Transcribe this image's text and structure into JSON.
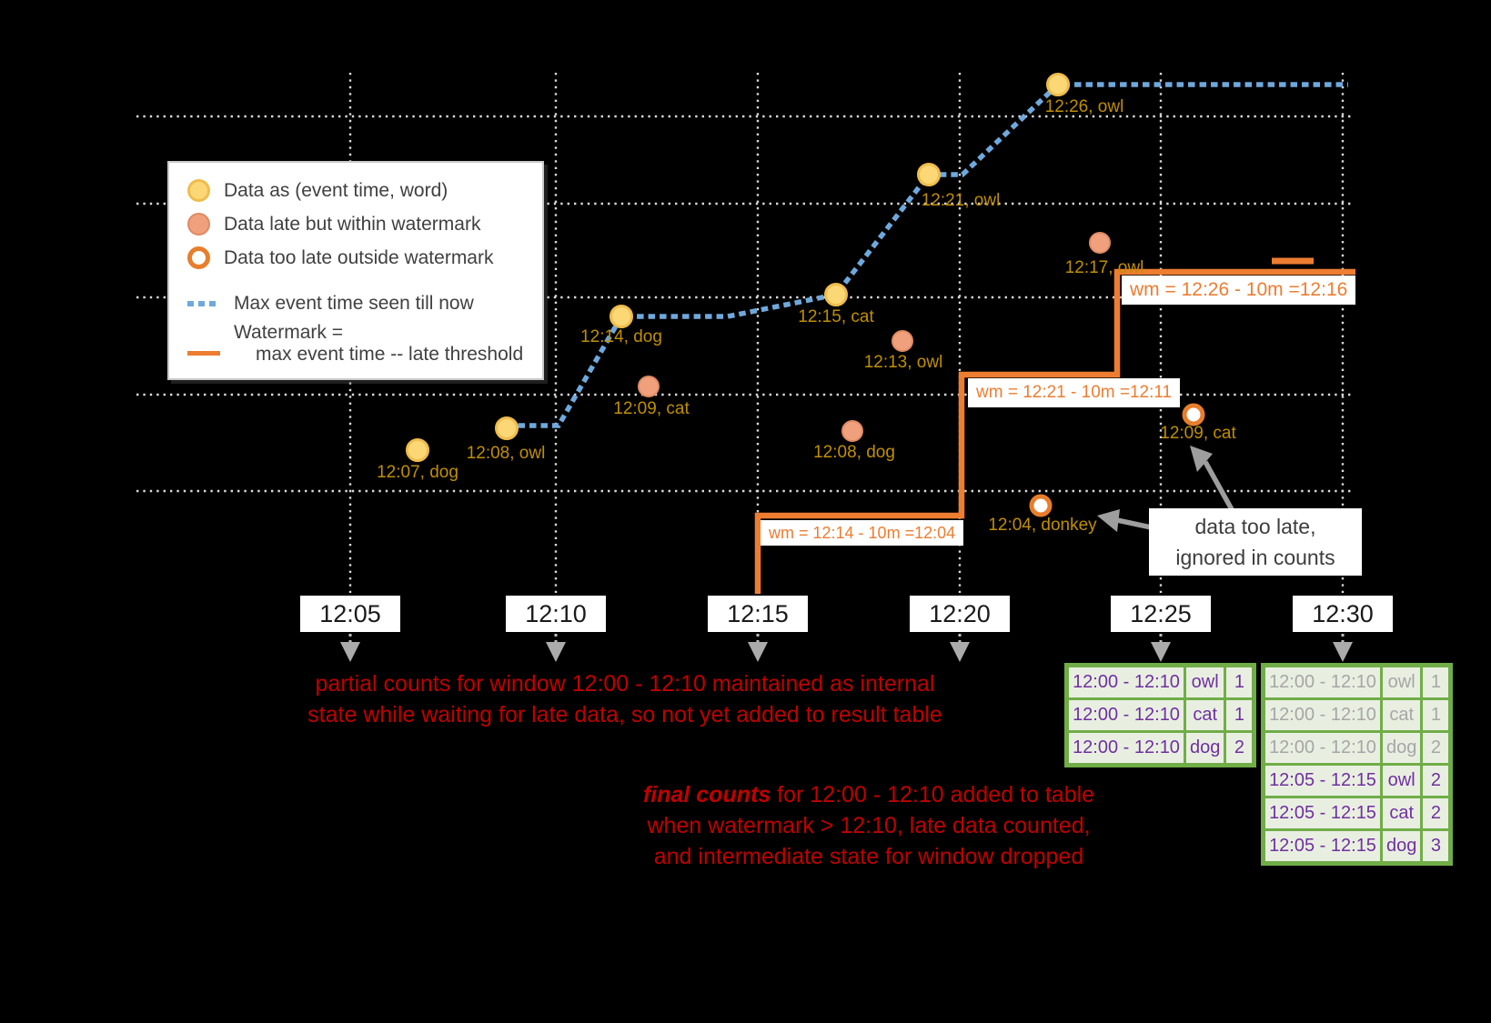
{
  "legend": {
    "items": [
      {
        "icon": "yellow-dot",
        "label": "Data as (event time, word)"
      },
      {
        "icon": "salmon-dot",
        "label": "Data late but within watermark"
      },
      {
        "icon": "orange-ring",
        "label": "Data too late outside watermark"
      },
      {
        "icon": "blue-dashes",
        "label": "Max event time seen till now"
      }
    ],
    "watermark_label_line1": "Watermark =",
    "watermark_label_line2": "max event time -- late threshold"
  },
  "points": {
    "d1207": "12:07, dog",
    "o1208": "12:08, owl",
    "d1214": "12:14, dog",
    "c1215": "12:15, cat",
    "o1221": "12:21, owl",
    "o1226": "12:26, owl",
    "c1209": "12:09, cat",
    "o1213": "12:13, owl",
    "d1208": "12:08, dog",
    "o1217": "12:17, owl",
    "donkey1204": "12:04, donkey",
    "c1209late": "12:09, cat"
  },
  "watermarks": {
    "wm1": "wm = 12:14 - 10m =12:04",
    "wm2": "wm = 12:21 - 10m =12:11",
    "wm3": "wm = 12:26 - 10m =12:16"
  },
  "timeline": [
    "12:05",
    "12:10",
    "12:15",
    "12:20",
    "12:25",
    "12:30"
  ],
  "notes": {
    "partial_line1": "partial counts for window 12:00 - 12:10 maintained as internal",
    "partial_line2": "state while waiting for late data, so not yet added  to result table",
    "final_emph": "final counts",
    "final_line1_rest": " for 12:00 - 12:10 added to table",
    "final_line2": "when watermark > 12:10, late data counted,",
    "final_line3": "and intermediate state for window dropped",
    "too_late_line1": "data too late,",
    "too_late_line2": "ignored in counts"
  },
  "tables": {
    "t1225": {
      "rows": [
        [
          "12:00 - 12:10",
          "owl",
          "1"
        ],
        [
          "12:00 - 12:10",
          "cat",
          "1"
        ],
        [
          "12:00 - 12:10",
          "dog",
          "2"
        ]
      ],
      "muted_rows": 0
    },
    "t1230": {
      "rows": [
        [
          "12:00 - 12:10",
          "owl",
          "1"
        ],
        [
          "12:00 - 12:10",
          "cat",
          "1"
        ],
        [
          "12:00 - 12:10",
          "dog",
          "2"
        ],
        [
          "12:05 - 12:15",
          "owl",
          "2"
        ],
        [
          "12:05 - 12:15",
          "cat",
          "2"
        ],
        [
          "12:05 - 12:15",
          "dog",
          "3"
        ]
      ],
      "muted_rows": 3
    }
  },
  "colors": {
    "background": "#000000",
    "gridline": "#d9d9d9",
    "on_time_point": "#FBD775",
    "late_point": "#F1A07D",
    "too_late_ring": "#E87E2B",
    "max_event_time_line": "#6FA8DC",
    "watermark_line": "#ED7D31",
    "point_label": "#BF8F00",
    "note_red": "#C00000",
    "table_border_green": "#70AD47",
    "table_text_purple": "#7030A0",
    "table_text_muted": "#A6A6A6"
  }
}
